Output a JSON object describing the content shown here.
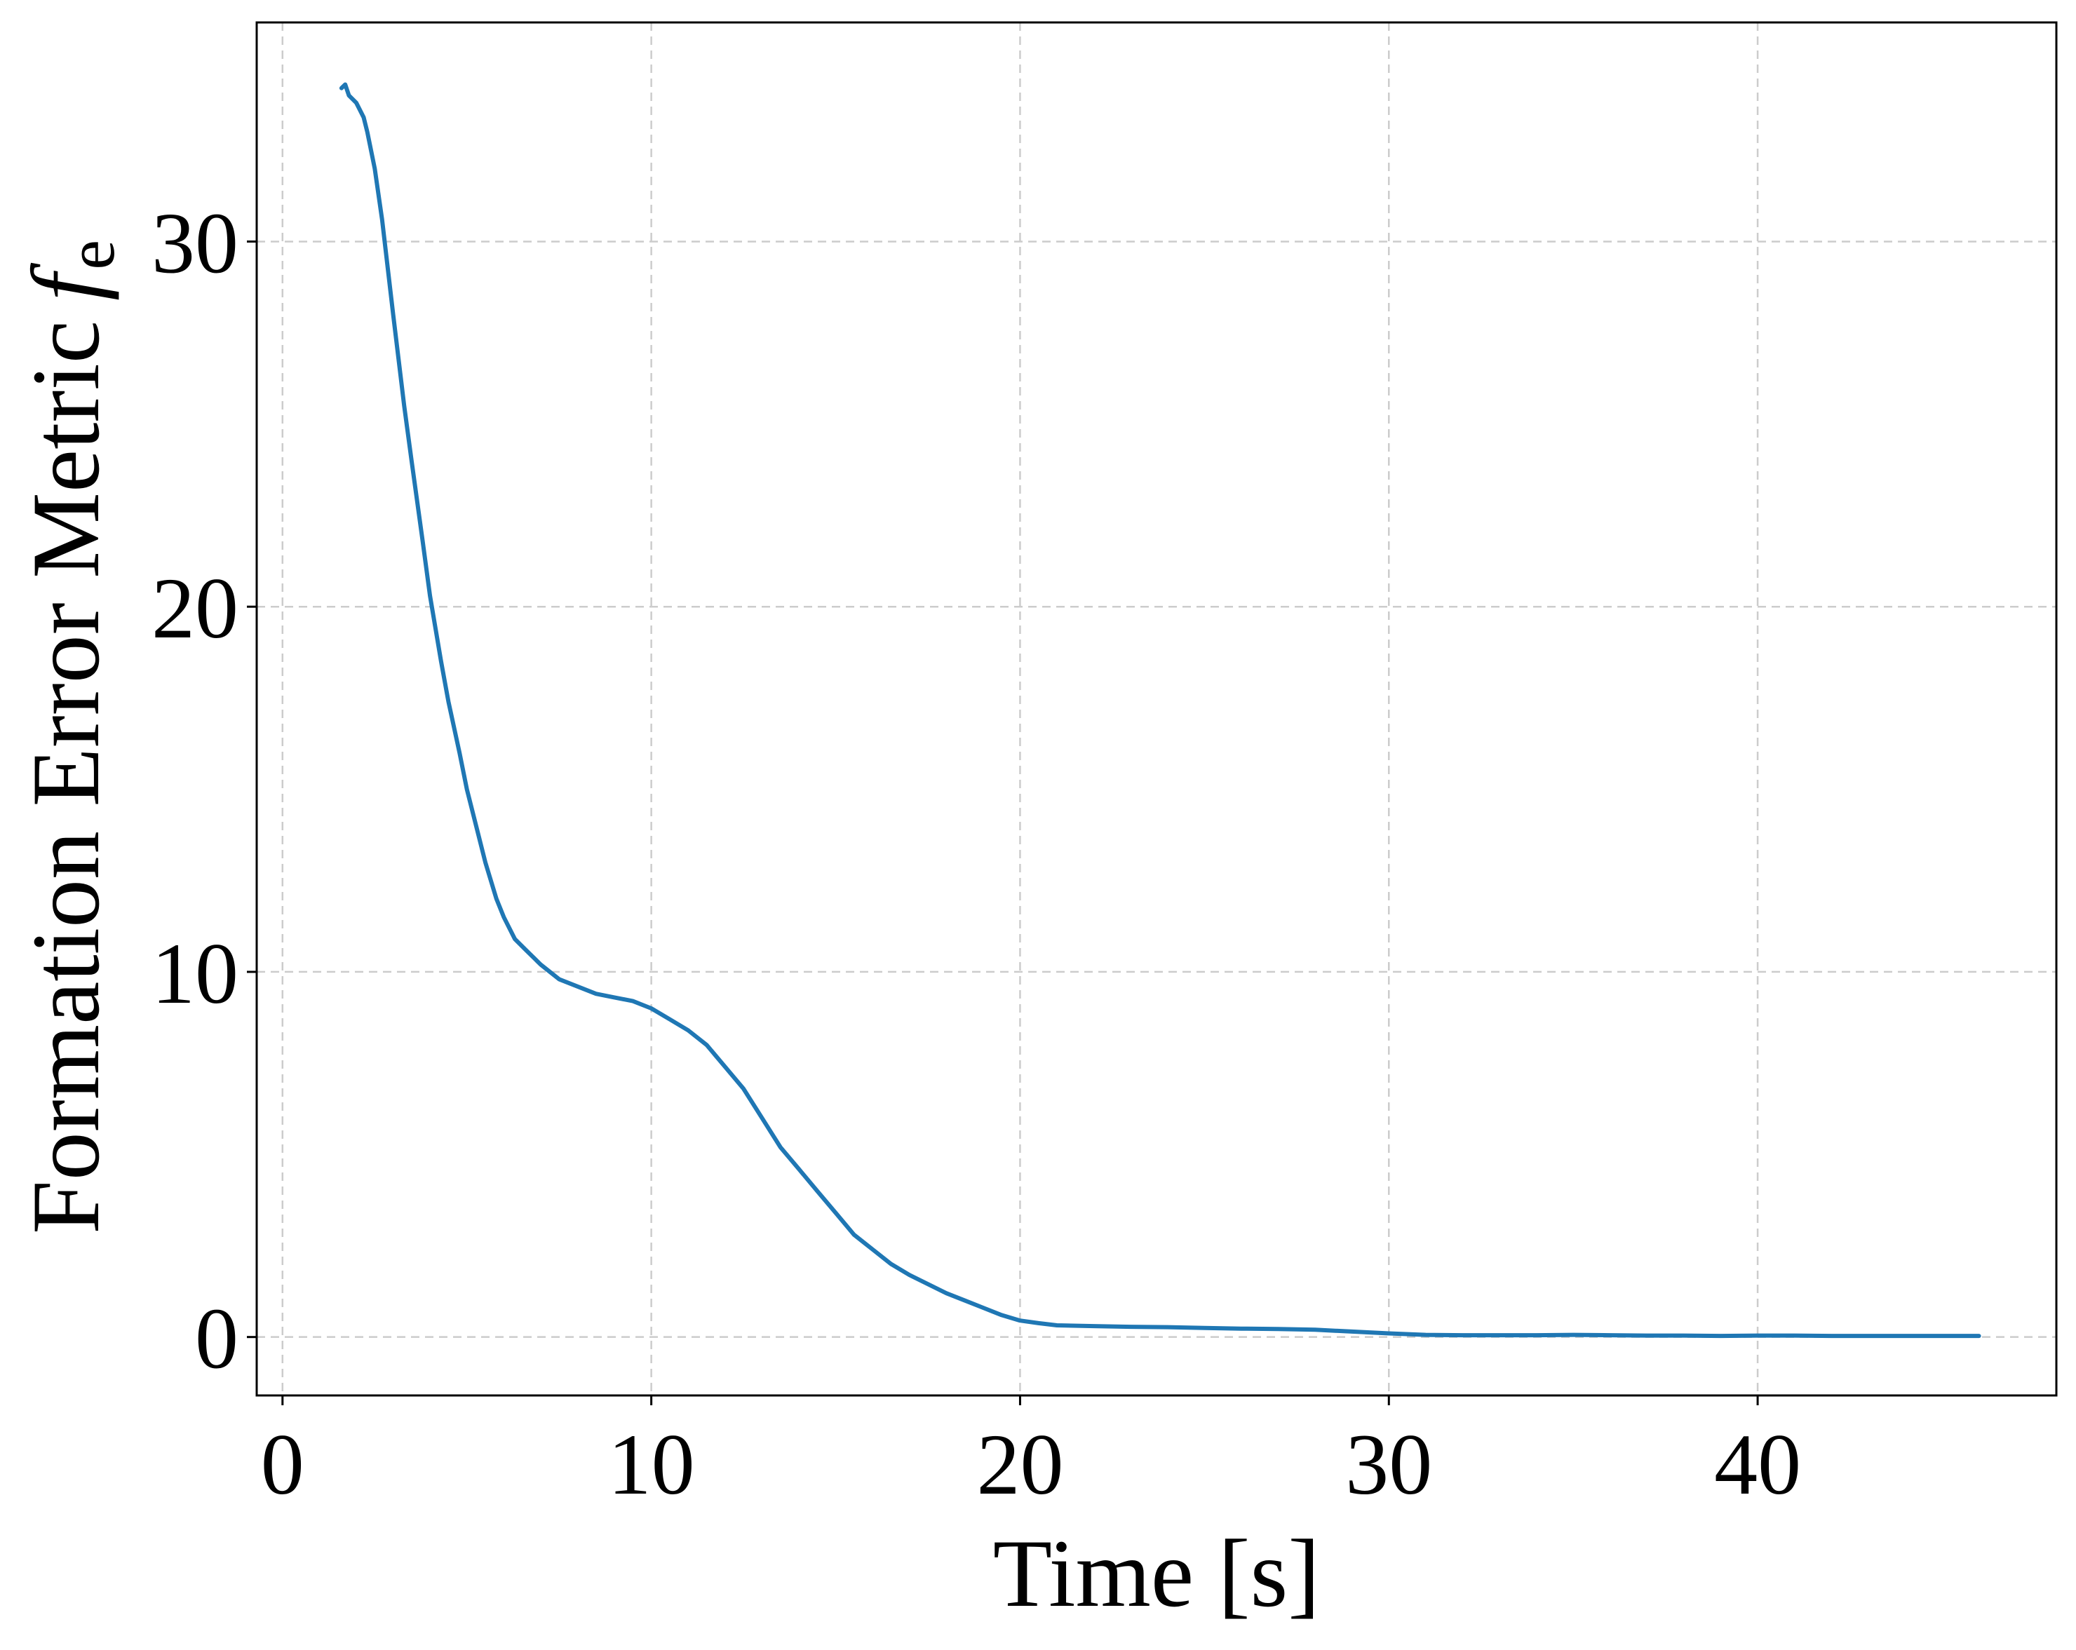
{
  "chart_data": {
    "type": "line",
    "xlabel": "Time [s]",
    "ylabel": "Formation Error Metric",
    "ylabel_symbol": "f",
    "ylabel_subscript": "e",
    "xlim": [
      -0.7,
      48.1
    ],
    "ylim": [
      -1.6,
      36.0
    ],
    "x_ticks": [
      0,
      10,
      20,
      30,
      40
    ],
    "y_ticks": [
      0,
      10,
      20,
      30
    ],
    "x_tick_labels": [
      "0",
      "10",
      "20",
      "30",
      "40"
    ],
    "y_tick_labels": [
      "0",
      "10",
      "20",
      "30"
    ],
    "grid": true,
    "color": "#1f77b4",
    "series": [
      {
        "x": [
          1.6,
          1.7,
          1.8,
          2.0,
          2.2,
          2.3,
          2.5,
          2.7,
          3.0,
          3.3,
          3.5,
          3.8,
          4.0,
          4.3,
          4.5,
          4.8,
          5.0,
          5.3,
          5.5,
          5.8,
          6.0,
          6.3,
          6.6,
          7.0,
          7.5,
          8.0,
          8.5,
          9.0,
          9.5,
          10.0,
          10.5,
          11.0,
          11.5,
          12.0,
          12.5,
          13.0,
          13.5,
          14.0,
          14.5,
          15.0,
          15.5,
          16.0,
          16.5,
          17.0,
          17.5,
          18.0,
          18.5,
          19.0,
          19.5,
          20.0,
          20.5,
          21.0,
          22.0,
          23.0,
          24.0,
          25.0,
          26.0,
          27.0,
          28.0,
          29.0,
          30.0,
          31.0,
          32.0,
          33.0,
          34.0,
          35.0,
          36.0,
          37.0,
          38.0,
          39.0,
          40.0,
          41.0,
          42.0,
          43.0,
          44.0,
          45.0,
          46.0
        ],
        "y": [
          34.2,
          34.3,
          34.0,
          33.8,
          33.4,
          33.0,
          32.0,
          30.6,
          28.0,
          25.5,
          24.0,
          21.8,
          20.3,
          18.5,
          17.4,
          16.0,
          15.0,
          13.8,
          13.0,
          12.0,
          11.5,
          10.9,
          10.6,
          10.2,
          9.8,
          9.6,
          9.4,
          9.3,
          9.2,
          9.0,
          8.7,
          8.4,
          8.0,
          7.4,
          6.8,
          6.0,
          5.2,
          4.6,
          4.0,
          3.4,
          2.8,
          2.4,
          2.0,
          1.7,
          1.45,
          1.2,
          1.0,
          0.8,
          0.6,
          0.45,
          0.38,
          0.32,
          0.3,
          0.28,
          0.27,
          0.25,
          0.23,
          0.22,
          0.2,
          0.15,
          0.1,
          0.06,
          0.05,
          0.05,
          0.05,
          0.06,
          0.05,
          0.04,
          0.04,
          0.03,
          0.04,
          0.04,
          0.03,
          0.03,
          0.03,
          0.03,
          0.03
        ]
      }
    ]
  }
}
